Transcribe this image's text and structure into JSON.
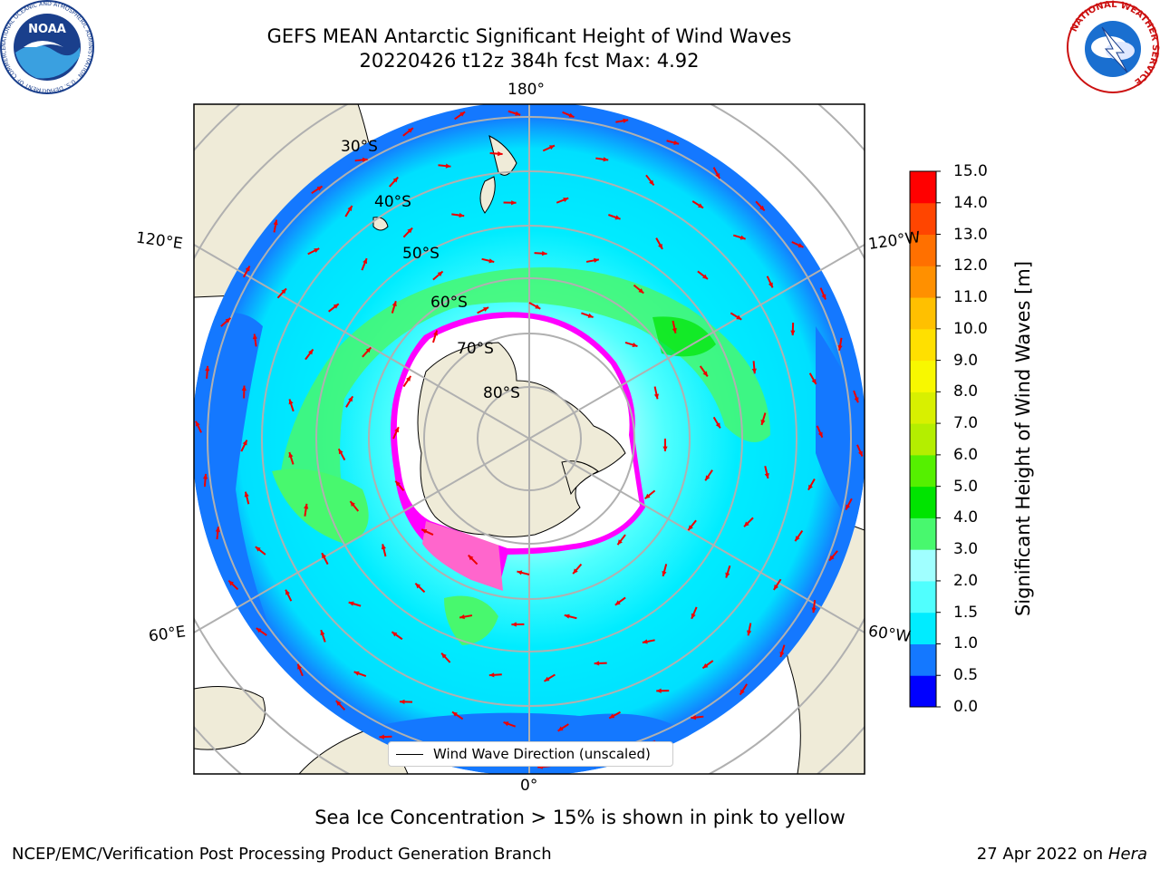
{
  "header": {
    "title_line1": "GEFS MEAN Antarctic Significant Height of Wind Waves",
    "title_line2": "20220426 t12z 384h fcst   Max: 4.92",
    "logo_left": "noaa-logo",
    "logo_right": "national-weather-service-logo",
    "logo_left_text": "NOAA",
    "logo_left_ring": "NATIONAL OCEANIC AND ATMOSPHERIC ADMINISTRATION · U.S. DEPARTMENT OF COMMERCE",
    "logo_right_ring": "NATIONAL WEATHER SERVICE"
  },
  "map": {
    "projection": "south-polar-stereographic",
    "longitude_labels": {
      "top": "180°",
      "bottom": "0°",
      "left_upper": "120°E",
      "left_lower": "60°E",
      "right_upper": "120°W",
      "right_lower": "60°W"
    },
    "latitude_labels": [
      "30°S",
      "40°S",
      "50°S",
      "60°S",
      "70°S",
      "80°S"
    ],
    "legend_label": "Wind Wave Direction (unscaled)",
    "colors": {
      "land": "#efebd8",
      "ice_pink": "#ff66cc",
      "ice_magenta": "#ff00ff",
      "ice_yellow": "#ffdd55",
      "ocean_low": "#1478ff",
      "ocean_mid": "#00ecff",
      "ocean_high": "#a0ffff",
      "ocean_green": "#48f86e",
      "arrow": "#ee0000",
      "grid": "#b0b0b0"
    }
  },
  "colorbar": {
    "label": "Significant Height of Wind Waves [m]",
    "ticks": [
      "0.0",
      "0.5",
      "1.0",
      "1.5",
      "2.0",
      "3.0",
      "4.0",
      "5.0",
      "6.0",
      "7.0",
      "8.0",
      "9.0",
      "10.0",
      "11.0",
      "12.0",
      "13.0",
      "14.0",
      "15.0"
    ],
    "colors": [
      "#0000ff",
      "#1478ff",
      "#00ecff",
      "#50fffe",
      "#a0ffff",
      "#48f86e",
      "#00e400",
      "#55f000",
      "#b4ee00",
      "#d8f000",
      "#f8f800",
      "#ffe000",
      "#ffc000",
      "#ff9000",
      "#ff7000",
      "#ff4500",
      "#ff0000"
    ]
  },
  "note": "Sea Ice Concentration > 15% is shown in pink to yellow",
  "footer": {
    "left": "NCEP/EMC/Verification Post Processing Product Generation Branch",
    "right_date": "27 Apr 2022 on ",
    "right_machine": "Hera"
  }
}
